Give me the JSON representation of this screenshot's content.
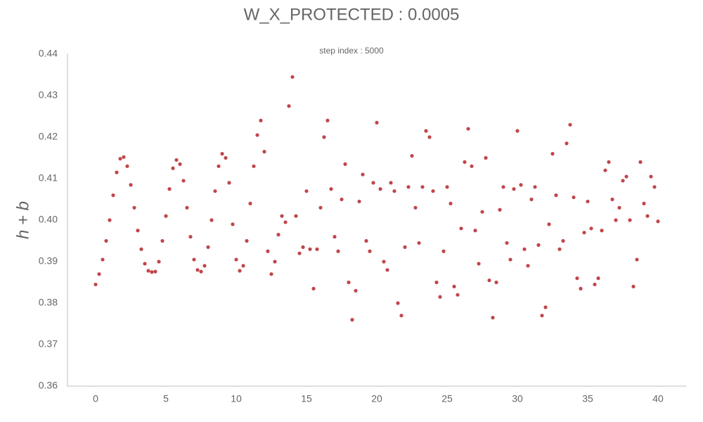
{
  "chart_data": {
    "type": "scatter",
    "title": "W_X_PROTECTED : 0.0005",
    "subtitle": "step index : 5000",
    "y_label": "h + b",
    "color": "#c0464a",
    "xlim": [
      -2,
      42
    ],
    "ylim": [
      0.36,
      0.44
    ],
    "xticks": [
      0,
      5,
      10,
      15,
      20,
      25,
      30,
      35,
      40
    ],
    "yticks": [
      0.36,
      0.37,
      0.38,
      0.39,
      {
        "value": 0.4,
        "label": "0.40"
      },
      0.41,
      0.42,
      0.43,
      0.44
    ],
    "x": [
      0,
      0.25,
      0.5,
      0.75,
      1,
      1.25,
      1.5,
      1.75,
      2,
      2.25,
      2.5,
      2.75,
      3,
      3.25,
      3.5,
      3.75,
      4,
      4.25,
      4.5,
      4.75,
      5,
      5.25,
      5.5,
      5.75,
      6,
      6.25,
      6.5,
      6.75,
      7,
      7.25,
      7.5,
      7.75,
      8,
      8.25,
      8.5,
      8.75,
      9,
      9.25,
      9.5,
      9.75,
      10,
      10.25,
      10.5,
      10.75,
      11,
      11.25,
      11.5,
      11.75,
      12,
      12.25,
      12.5,
      12.75,
      13,
      13.25,
      13.5,
      13.75,
      14,
      14.25,
      14.5,
      14.75,
      15,
      15.25,
      15.5,
      15.75,
      16,
      16.25,
      16.5,
      16.75,
      17,
      17.25,
      17.5,
      17.75,
      18,
      18.25,
      18.5,
      18.75,
      19,
      19.25,
      19.5,
      19.75,
      20,
      20.25,
      20.5,
      20.75,
      21,
      21.25,
      21.5,
      21.75,
      22,
      22.25,
      22.5,
      22.75,
      23,
      23.25,
      23.5,
      23.75,
      24,
      24.25,
      24.5,
      24.75,
      25,
      25.25,
      25.5,
      25.75,
      26,
      26.25,
      26.5,
      26.75,
      27,
      27.25,
      27.5,
      27.75,
      28,
      28.25,
      28.5,
      28.75,
      29,
      29.25,
      29.5,
      29.75,
      30,
      30.25,
      30.5,
      30.75,
      31,
      31.25,
      31.5,
      31.75,
      32,
      32.25,
      32.5,
      32.75,
      33,
      33.25,
      33.5,
      33.75,
      34,
      34.25,
      34.5,
      34.75,
      35,
      35.25,
      35.5,
      35.75,
      36,
      36.25,
      36.5,
      36.75,
      37,
      37.25,
      37.5,
      37.75,
      38,
      38.25,
      38.5,
      38.75,
      39,
      39.25,
      39.5,
      39.75,
      40
    ],
    "values": [
      0.3845,
      0.387,
      0.3905,
      0.395,
      0.4,
      0.406,
      0.4115,
      0.4148,
      0.4152,
      0.413,
      0.4085,
      0.403,
      0.3975,
      0.393,
      0.3895,
      0.3878,
      0.3875,
      0.3876,
      0.39,
      0.395,
      0.401,
      0.4075,
      0.4125,
      0.4145,
      0.4135,
      0.4095,
      0.403,
      0.396,
      0.3905,
      0.388,
      0.3876,
      0.389,
      0.3935,
      0.4,
      0.407,
      0.413,
      0.416,
      0.415,
      0.409,
      0.399,
      0.3905,
      0.3878,
      0.389,
      0.395,
      0.404,
      0.413,
      0.4205,
      0.424,
      0.4165,
      0.3925,
      0.387,
      0.39,
      0.3965,
      0.401,
      0.3995,
      0.4275,
      0.4345,
      0.401,
      0.392,
      0.3935,
      0.407,
      0.393,
      0.3835,
      0.393,
      0.403,
      0.42,
      0.424,
      0.4075,
      0.396,
      0.3925,
      0.405,
      0.4135,
      0.385,
      0.376,
      0.383,
      0.4045,
      0.411,
      0.395,
      0.3925,
      0.409,
      0.4235,
      0.4075,
      0.39,
      0.388,
      0.409,
      0.407,
      0.38,
      0.377,
      0.3935,
      0.408,
      0.4155,
      0.403,
      0.3945,
      0.408,
      0.4215,
      0.42,
      0.407,
      0.385,
      0.3815,
      0.3925,
      0.408,
      0.404,
      0.384,
      0.382,
      0.398,
      0.414,
      0.422,
      0.413,
      0.3975,
      0.3895,
      0.402,
      0.415,
      0.3855,
      0.3765,
      0.385,
      0.4025,
      0.408,
      0.3945,
      0.3905,
      0.4075,
      0.4215,
      0.4085,
      0.393,
      0.389,
      0.405,
      0.408,
      0.394,
      0.377,
      0.379,
      0.399,
      0.416,
      0.406,
      0.393,
      0.395,
      0.4185,
      0.423,
      0.4055,
      0.386,
      0.3835,
      0.397,
      0.4045,
      0.398,
      0.3845,
      0.386,
      0.3975,
      0.412,
      0.414,
      0.405,
      0.4,
      0.403,
      0.4095,
      0.4105,
      0.4,
      0.384,
      0.3905,
      0.414,
      0.404,
      0.401,
      0.4105,
      0.408,
      0.3997
    ]
  }
}
